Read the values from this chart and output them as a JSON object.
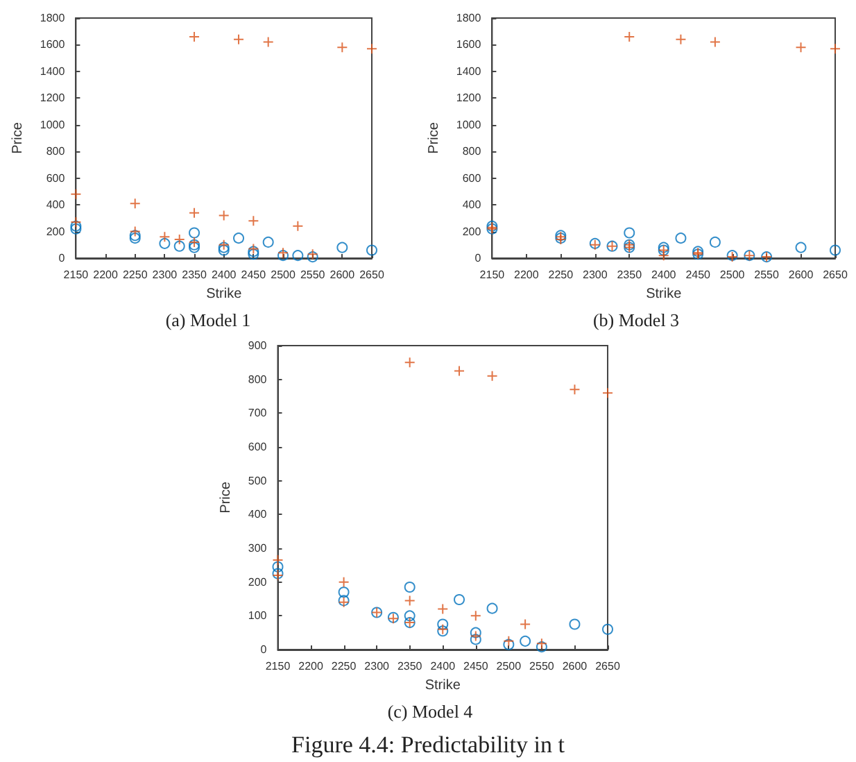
{
  "chart_data": [
    {
      "type": "scatter",
      "title": "(a) Model 1",
      "xlabel": "Strike",
      "ylabel": "Price",
      "xlim": [
        2150,
        2650
      ],
      "xticks": [
        2150,
        2200,
        2250,
        2300,
        2350,
        2400,
        2450,
        2500,
        2550,
        2600,
        2650
      ],
      "ylim": [
        0,
        1800
      ],
      "yticks": [
        0,
        200,
        400,
        600,
        800,
        1000,
        1200,
        1400,
        1600,
        1800
      ],
      "grid": false,
      "series": [
        {
          "color": "#0072bd",
          "marker": "circle",
          "x": [
            2150,
            2150,
            2250,
            2250,
            2300,
            2325,
            2350,
            2350,
            2350,
            2400,
            2400,
            2425,
            2450,
            2450,
            2475,
            2500,
            2525,
            2550,
            2600,
            2650
          ],
          "values": [
            240,
            220,
            170,
            150,
            110,
            90,
            190,
            100,
            80,
            80,
            60,
            150,
            50,
            30,
            120,
            20,
            20,
            10,
            80,
            60
          ]
        },
        {
          "color": "#d95319",
          "marker": "cross",
          "x": [
            2150,
            2150,
            2250,
            2250,
            2300,
            2325,
            2350,
            2350,
            2350,
            2400,
            2400,
            2425,
            2450,
            2450,
            2475,
            2500,
            2525,
            2550,
            2600,
            2650
          ],
          "values": [
            480,
            270,
            410,
            200,
            160,
            140,
            1660,
            340,
            120,
            320,
            100,
            1640,
            280,
            70,
            1620,
            40,
            240,
            30,
            1580,
            1570
          ]
        }
      ]
    },
    {
      "type": "scatter",
      "title": "(b) Model 3",
      "xlabel": "Strike",
      "ylabel": "Price",
      "xlim": [
        2150,
        2650
      ],
      "xticks": [
        2150,
        2200,
        2250,
        2300,
        2350,
        2400,
        2450,
        2500,
        2550,
        2600,
        2650
      ],
      "ylim": [
        0,
        1800
      ],
      "yticks": [
        0,
        200,
        400,
        600,
        800,
        1000,
        1200,
        1400,
        1600,
        1800
      ],
      "grid": false,
      "series": [
        {
          "color": "#0072bd",
          "marker": "circle",
          "x": [
            2150,
            2150,
            2250,
            2250,
            2300,
            2325,
            2350,
            2350,
            2350,
            2400,
            2400,
            2425,
            2450,
            2450,
            2475,
            2500,
            2525,
            2550,
            2600,
            2650
          ],
          "values": [
            240,
            220,
            170,
            150,
            110,
            90,
            190,
            100,
            80,
            80,
            60,
            150,
            50,
            30,
            120,
            20,
            20,
            10,
            80,
            60
          ]
        },
        {
          "color": "#d95319",
          "marker": "cross",
          "x": [
            2150,
            2150,
            2250,
            2250,
            2300,
            2325,
            2350,
            2350,
            2350,
            2400,
            2400,
            2425,
            2450,
            2450,
            2475,
            2500,
            2525,
            2550,
            2600,
            2650
          ],
          "values": [
            230,
            220,
            160,
            140,
            100,
            90,
            1660,
            100,
            80,
            60,
            20,
            1640,
            40,
            30,
            1620,
            10,
            20,
            10,
            1580,
            1570
          ]
        }
      ]
    },
    {
      "type": "scatter",
      "title": "(c) Model 4",
      "xlabel": "Strike",
      "ylabel": "Price",
      "xlim": [
        2150,
        2650
      ],
      "xticks": [
        2150,
        2200,
        2250,
        2300,
        2350,
        2400,
        2450,
        2500,
        2550,
        2600,
        2650
      ],
      "ylim": [
        0,
        900
      ],
      "yticks": [
        0,
        100,
        200,
        300,
        400,
        500,
        600,
        700,
        800,
        900
      ],
      "grid": false,
      "annotations": [
        "Figure 4.4: Predictability in t"
      ],
      "series": [
        {
          "color": "#0072bd",
          "marker": "circle",
          "x": [
            2150,
            2150,
            2250,
            2250,
            2300,
            2325,
            2350,
            2350,
            2350,
            2400,
            2400,
            2425,
            2450,
            2450,
            2475,
            2500,
            2525,
            2550,
            2600,
            2650
          ],
          "values": [
            245,
            225,
            170,
            145,
            110,
            95,
            185,
            100,
            80,
            75,
            55,
            148,
            50,
            30,
            122,
            15,
            25,
            8,
            75,
            60
          ]
        },
        {
          "color": "#d95319",
          "marker": "cross",
          "x": [
            2150,
            2150,
            2250,
            2250,
            2300,
            2325,
            2350,
            2350,
            2350,
            2400,
            2400,
            2425,
            2450,
            2450,
            2475,
            2500,
            2525,
            2550,
            2600,
            2650
          ],
          "values": [
            265,
            220,
            200,
            140,
            110,
            92,
            850,
            145,
            80,
            120,
            60,
            825,
            100,
            40,
            810,
            25,
            75,
            18,
            770,
            760
          ]
        }
      ]
    }
  ]
}
